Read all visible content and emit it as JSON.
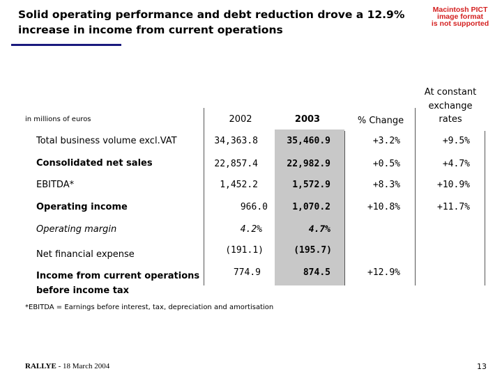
{
  "title": "Solid operating performance and debt reduction drove a 12.9% increase in income from current operations",
  "pict_notice": [
    "Macintosh PICT",
    "image format",
    "is not supported"
  ],
  "units_label": "in millions of euros",
  "columns": {
    "y2002": "2002",
    "y2003": "2003",
    "change": "% Change",
    "constant_rates": [
      "At constant",
      "exchange",
      "rates"
    ]
  },
  "rows": [
    {
      "label": "Total business volume excl.VAT",
      "v2002": "34,363.8",
      "v2003": "35,460.9",
      "change": "+3.2%",
      "constant": "+9.5%"
    },
    {
      "label": "Consolidated net sales",
      "v2002": "22,857.4",
      "v2003": "22,982.9",
      "change": "+0.5%",
      "constant": "+4.7%"
    },
    {
      "label": "EBITDA*",
      "v2002": "1,452.2",
      "v2003": "1,572.9",
      "change": "+8.3%",
      "constant": "+10.9%"
    },
    {
      "label": "Operating income",
      "v2002": "966.0",
      "v2003": "1,070.2",
      "change": "+10.8%",
      "constant": "+11.7%"
    },
    {
      "label": "Operating margin",
      "v2002": "4.2%",
      "v2003": "4.7%",
      "change": "",
      "constant": ""
    },
    {
      "label": "Net financial expense",
      "v2002": "(191.1)",
      "v2003": "(195.7)",
      "change": "",
      "constant": ""
    },
    {
      "label_lines": [
        "Income from current operations",
        "before income tax"
      ],
      "v2002": "774.9",
      "v2003": "874.5",
      "change": "+12.9%",
      "constant": ""
    }
  ],
  "footnote": "*EBITDA = Earnings before interest, tax, depreciation and amortisation",
  "footer": {
    "company": "RALLYE",
    "date": " - 18 March 2004"
  },
  "page_number": "13",
  "colors": {
    "title_rule": "#1a1a7e",
    "shade": "#c8c8c8",
    "pict_text": "#d42020"
  }
}
